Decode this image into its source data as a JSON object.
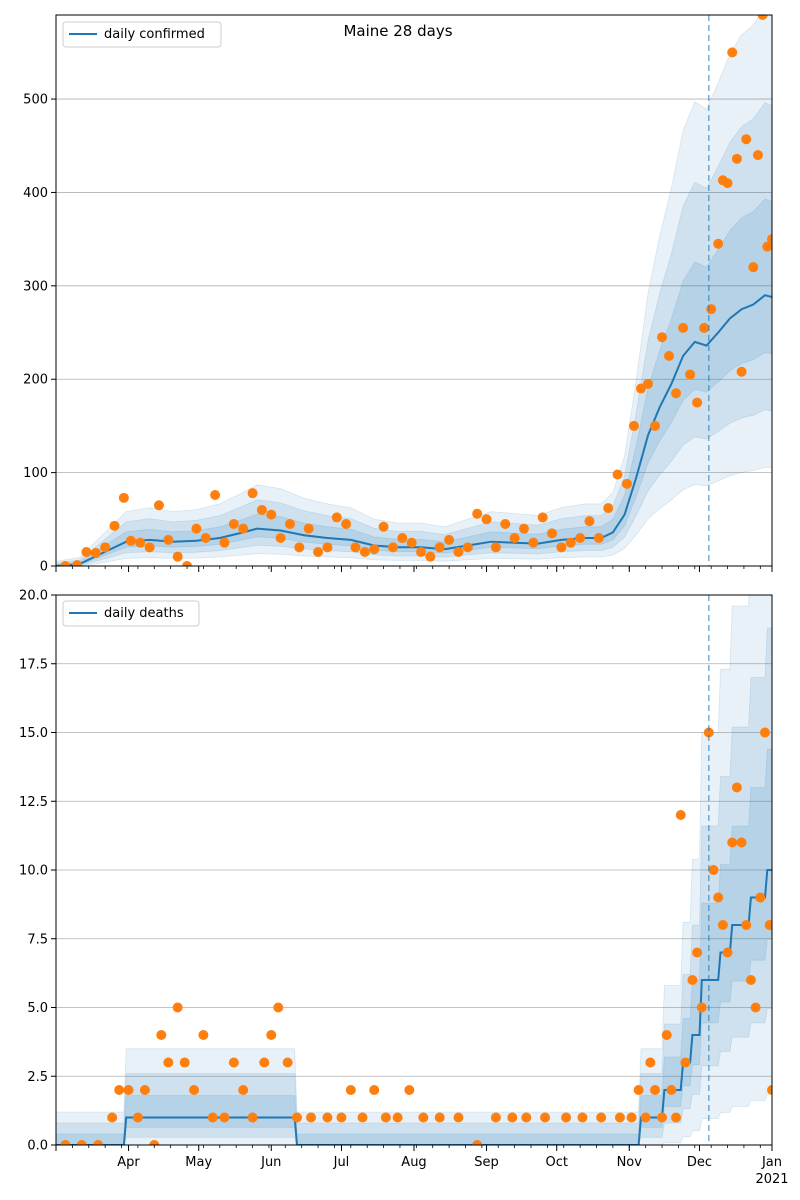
{
  "chart_data": [
    {
      "type": "line",
      "title": "Maine 28 days",
      "ylim": [
        0,
        590
      ],
      "yticks": [
        0,
        100,
        200,
        300,
        400,
        500
      ],
      "x_range": [
        "2020-03-01",
        "2021-01-01"
      ],
      "xtick_labels": [
        "Apr",
        "May",
        "Jun",
        "Jul",
        "Aug",
        "Sep",
        "Oct",
        "Nov",
        "Dec",
        "Jan"
      ],
      "xtick_year": "2021",
      "forecast_start": "2020-12-05",
      "grid": "y",
      "legend": "top-left",
      "series": [
        {
          "name": "daily confirmed",
          "kind": "line",
          "color": "#1f77b4",
          "points": [
            [
              "2020-03-01",
              0
            ],
            [
              "2020-03-11",
              2
            ],
            [
              "2020-03-16",
              8
            ],
            [
              "2020-03-21",
              14
            ],
            [
              "2020-03-26",
              20
            ],
            [
              "2020-03-31",
              26
            ],
            [
              "2020-04-10",
              28
            ],
            [
              "2020-04-20",
              26
            ],
            [
              "2020-04-30",
              27
            ],
            [
              "2020-05-10",
              30
            ],
            [
              "2020-05-20",
              36
            ],
            [
              "2020-05-26",
              40
            ],
            [
              "2020-06-05",
              38
            ],
            [
              "2020-06-15",
              33
            ],
            [
              "2020-06-25",
              30
            ],
            [
              "2020-07-05",
              28
            ],
            [
              "2020-07-15",
              22
            ],
            [
              "2020-07-25",
              20
            ],
            [
              "2020-08-04",
              20
            ],
            [
              "2020-08-14",
              18
            ],
            [
              "2020-08-24",
              22
            ],
            [
              "2020-09-03",
              26
            ],
            [
              "2020-09-13",
              25
            ],
            [
              "2020-09-23",
              24
            ],
            [
              "2020-10-03",
              28
            ],
            [
              "2020-10-13",
              30
            ],
            [
              "2020-10-20",
              30
            ],
            [
              "2020-10-25",
              36
            ],
            [
              "2020-10-30",
              55
            ],
            [
              "2020-11-04",
              95
            ],
            [
              "2020-11-09",
              140
            ],
            [
              "2020-11-14",
              170
            ],
            [
              "2020-11-19",
              195
            ],
            [
              "2020-11-24",
              225
            ],
            [
              "2020-11-29",
              240
            ],
            [
              "2020-12-04",
              236
            ],
            [
              "2020-12-09",
              250
            ],
            [
              "2020-12-14",
              265
            ],
            [
              "2020-12-19",
              275
            ],
            [
              "2020-12-24",
              280
            ],
            [
              "2020-12-29",
              290
            ],
            [
              "2021-01-01",
              288
            ]
          ]
        },
        {
          "name": "",
          "kind": "scatter",
          "color": "#ff7f0e",
          "points": [
            [
              "2020-03-05",
              0
            ],
            [
              "2020-03-10",
              1
            ],
            [
              "2020-03-14",
              15
            ],
            [
              "2020-03-18",
              14
            ],
            [
              "2020-03-22",
              20
            ],
            [
              "2020-03-26",
              43
            ],
            [
              "2020-03-30",
              73
            ],
            [
              "2020-04-02",
              27
            ],
            [
              "2020-04-06",
              25
            ],
            [
              "2020-04-10",
              20
            ],
            [
              "2020-04-14",
              65
            ],
            [
              "2020-04-18",
              28
            ],
            [
              "2020-04-22",
              10
            ],
            [
              "2020-04-26",
              0
            ],
            [
              "2020-04-30",
              40
            ],
            [
              "2020-05-04",
              30
            ],
            [
              "2020-05-08",
              76
            ],
            [
              "2020-05-12",
              25
            ],
            [
              "2020-05-16",
              45
            ],
            [
              "2020-05-20",
              40
            ],
            [
              "2020-05-24",
              78
            ],
            [
              "2020-05-28",
              60
            ],
            [
              "2020-06-01",
              55
            ],
            [
              "2020-06-05",
              30
            ],
            [
              "2020-06-09",
              45
            ],
            [
              "2020-06-13",
              20
            ],
            [
              "2020-06-17",
              40
            ],
            [
              "2020-06-21",
              15
            ],
            [
              "2020-06-25",
              20
            ],
            [
              "2020-06-29",
              52
            ],
            [
              "2020-07-03",
              45
            ],
            [
              "2020-07-07",
              20
            ],
            [
              "2020-07-11",
              15
            ],
            [
              "2020-07-15",
              18
            ],
            [
              "2020-07-19",
              42
            ],
            [
              "2020-07-23",
              20
            ],
            [
              "2020-07-27",
              30
            ],
            [
              "2020-07-31",
              25
            ],
            [
              "2020-08-04",
              15
            ],
            [
              "2020-08-08",
              10
            ],
            [
              "2020-08-12",
              20
            ],
            [
              "2020-08-16",
              28
            ],
            [
              "2020-08-20",
              15
            ],
            [
              "2020-08-24",
              20
            ],
            [
              "2020-08-28",
              56
            ],
            [
              "2020-09-01",
              50
            ],
            [
              "2020-09-05",
              20
            ],
            [
              "2020-09-09",
              45
            ],
            [
              "2020-09-13",
              30
            ],
            [
              "2020-09-17",
              40
            ],
            [
              "2020-09-21",
              25
            ],
            [
              "2020-09-25",
              52
            ],
            [
              "2020-09-29",
              35
            ],
            [
              "2020-10-03",
              20
            ],
            [
              "2020-10-07",
              25
            ],
            [
              "2020-10-11",
              30
            ],
            [
              "2020-10-15",
              48
            ],
            [
              "2020-10-19",
              30
            ],
            [
              "2020-10-23",
              62
            ],
            [
              "2020-10-27",
              98
            ],
            [
              "2020-10-31",
              88
            ],
            [
              "2020-11-03",
              150
            ],
            [
              "2020-11-06",
              190
            ],
            [
              "2020-11-09",
              195
            ],
            [
              "2020-11-12",
              150
            ],
            [
              "2020-11-15",
              245
            ],
            [
              "2020-11-18",
              225
            ],
            [
              "2020-11-21",
              185
            ],
            [
              "2020-11-24",
              255
            ],
            [
              "2020-11-27",
              205
            ],
            [
              "2020-11-30",
              175
            ],
            [
              "2020-12-03",
              255
            ],
            [
              "2020-12-06",
              275
            ],
            [
              "2020-12-09",
              345
            ],
            [
              "2020-12-11",
              413
            ],
            [
              "2020-12-13",
              410
            ],
            [
              "2020-12-15",
              550
            ],
            [
              "2020-12-17",
              436
            ],
            [
              "2020-12-19",
              208
            ],
            [
              "2020-12-21",
              457
            ],
            [
              "2020-12-24",
              320
            ],
            [
              "2020-12-26",
              440
            ],
            [
              "2020-12-28",
              590
            ],
            [
              "2020-12-30",
              342
            ],
            [
              "2021-01-01",
              350
            ]
          ]
        }
      ]
    },
    {
      "type": "line",
      "title": "",
      "ylim": [
        0,
        20
      ],
      "yticks": [
        0,
        2.5,
        5,
        7.5,
        10,
        12.5,
        15,
        17.5,
        20
      ],
      "ytick_labels": [
        "0.0",
        "2.5",
        "5.0",
        "7.5",
        "10.0",
        "12.5",
        "15.0",
        "17.5",
        "20.0"
      ],
      "x_range": [
        "2020-03-01",
        "2021-01-01"
      ],
      "xtick_labels": [
        "Apr",
        "May",
        "Jun",
        "Jul",
        "Aug",
        "Sep",
        "Oct",
        "Nov",
        "Dec",
        "Jan"
      ],
      "xtick_year": "2021",
      "forecast_start": "2020-12-05",
      "grid": "y",
      "legend": "top-left",
      "series": [
        {
          "name": "daily deaths",
          "kind": "step",
          "color": "#1f77b4",
          "points": [
            [
              "2020-03-01",
              0
            ],
            [
              "2020-03-30",
              0
            ],
            [
              "2020-03-31",
              1
            ],
            [
              "2020-06-11",
              1
            ],
            [
              "2020-06-12",
              0
            ],
            [
              "2020-11-05",
              0
            ],
            [
              "2020-11-06",
              1
            ],
            [
              "2020-11-15",
              1
            ],
            [
              "2020-11-16",
              2
            ],
            [
              "2020-11-23",
              2
            ],
            [
              "2020-11-24",
              3
            ],
            [
              "2020-11-27",
              3
            ],
            [
              "2020-11-28",
              4
            ],
            [
              "2020-12-01",
              4
            ],
            [
              "2020-12-02",
              6
            ],
            [
              "2020-12-04",
              6
            ],
            [
              "2020-12-05",
              6
            ],
            [
              "2020-12-09",
              6
            ],
            [
              "2020-12-10",
              7
            ],
            [
              "2020-12-14",
              7
            ],
            [
              "2020-12-15",
              8
            ],
            [
              "2020-12-22",
              8
            ],
            [
              "2020-12-23",
              9
            ],
            [
              "2020-12-29",
              9
            ],
            [
              "2020-12-30",
              10
            ],
            [
              "2021-01-01",
              10
            ]
          ]
        },
        {
          "name": "",
          "kind": "scatter",
          "color": "#ff7f0e",
          "points": [
            [
              "2020-03-05",
              0
            ],
            [
              "2020-03-12",
              0
            ],
            [
              "2020-03-19",
              0
            ],
            [
              "2020-03-25",
              1
            ],
            [
              "2020-03-28",
              2
            ],
            [
              "2020-04-01",
              2
            ],
            [
              "2020-04-05",
              1
            ],
            [
              "2020-04-08",
              2
            ],
            [
              "2020-04-12",
              0
            ],
            [
              "2020-04-15",
              4
            ],
            [
              "2020-04-18",
              3
            ],
            [
              "2020-04-22",
              5
            ],
            [
              "2020-04-25",
              3
            ],
            [
              "2020-04-29",
              2
            ],
            [
              "2020-05-03",
              4
            ],
            [
              "2020-05-07",
              1
            ],
            [
              "2020-05-12",
              1
            ],
            [
              "2020-05-16",
              3
            ],
            [
              "2020-05-20",
              2
            ],
            [
              "2020-05-24",
              1
            ],
            [
              "2020-05-29",
              3
            ],
            [
              "2020-06-01",
              4
            ],
            [
              "2020-06-04",
              5
            ],
            [
              "2020-06-08",
              3
            ],
            [
              "2020-06-12",
              1
            ],
            [
              "2020-06-18",
              1
            ],
            [
              "2020-06-25",
              1
            ],
            [
              "2020-07-01",
              1
            ],
            [
              "2020-07-05",
              2
            ],
            [
              "2020-07-10",
              1
            ],
            [
              "2020-07-15",
              2
            ],
            [
              "2020-07-20",
              1
            ],
            [
              "2020-07-25",
              1
            ],
            [
              "2020-07-30",
              2
            ],
            [
              "2020-08-05",
              1
            ],
            [
              "2020-08-12",
              1
            ],
            [
              "2020-08-20",
              1
            ],
            [
              "2020-08-28",
              0
            ],
            [
              "2020-09-05",
              1
            ],
            [
              "2020-09-12",
              1
            ],
            [
              "2020-09-18",
              1
            ],
            [
              "2020-09-26",
              1
            ],
            [
              "2020-10-05",
              1
            ],
            [
              "2020-10-12",
              1
            ],
            [
              "2020-10-20",
              1
            ],
            [
              "2020-10-28",
              1
            ],
            [
              "2020-11-02",
              1
            ],
            [
              "2020-11-05",
              2
            ],
            [
              "2020-11-08",
              1
            ],
            [
              "2020-11-10",
              3
            ],
            [
              "2020-11-12",
              2
            ],
            [
              "2020-11-15",
              1
            ],
            [
              "2020-11-17",
              4
            ],
            [
              "2020-11-19",
              2
            ],
            [
              "2020-11-21",
              1
            ],
            [
              "2020-11-23",
              12
            ],
            [
              "2020-11-25",
              3
            ],
            [
              "2020-11-28",
              6
            ],
            [
              "2020-11-30",
              7
            ],
            [
              "2020-12-02",
              5
            ],
            [
              "2020-12-05",
              15
            ],
            [
              "2020-12-07",
              10
            ],
            [
              "2020-12-09",
              9
            ],
            [
              "2020-12-11",
              8
            ],
            [
              "2020-12-13",
              7
            ],
            [
              "2020-12-15",
              11
            ],
            [
              "2020-12-17",
              13
            ],
            [
              "2020-12-19",
              11
            ],
            [
              "2020-12-21",
              8
            ],
            [
              "2020-12-23",
              6
            ],
            [
              "2020-12-25",
              5
            ],
            [
              "2020-12-27",
              9
            ],
            [
              "2020-12-29",
              15
            ],
            [
              "2020-12-31",
              8
            ],
            [
              "2021-01-01",
              2
            ]
          ]
        }
      ]
    }
  ]
}
